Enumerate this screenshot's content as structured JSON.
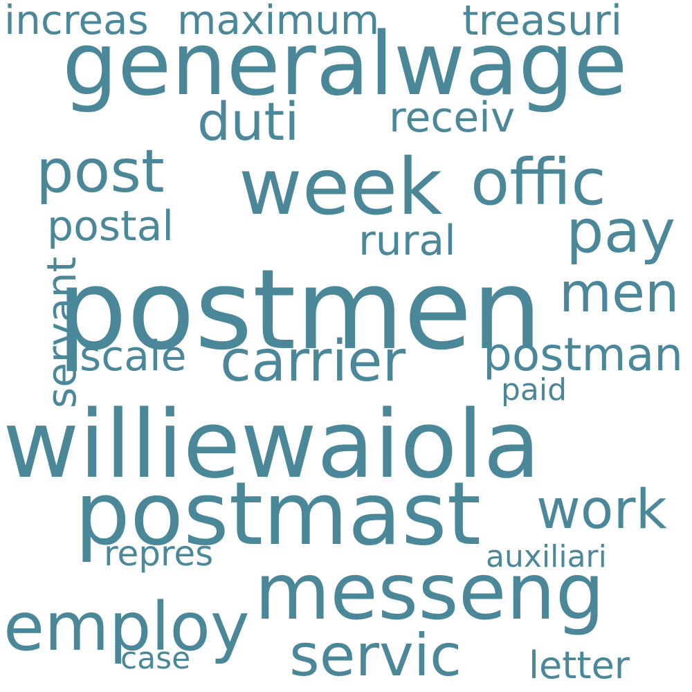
{
  "color": "#4a8799",
  "words": [
    {
      "id": "postmen",
      "text": "postmen"
    },
    {
      "id": "williewaiola",
      "text": "williewaiola"
    },
    {
      "id": "generalwage",
      "text": "generalwage"
    },
    {
      "id": "postmast",
      "text": "postmast"
    },
    {
      "id": "messeng",
      "text": "messeng"
    },
    {
      "id": "week",
      "text": "week"
    },
    {
      "id": "offic",
      "text": "offic"
    },
    {
      "id": "employ",
      "text": "employ"
    },
    {
      "id": "servic",
      "text": "servic"
    },
    {
      "id": "carrier",
      "text": "carrier"
    },
    {
      "id": "post",
      "text": "post"
    },
    {
      "id": "pay",
      "text": "pay"
    },
    {
      "id": "men",
      "text": "men"
    },
    {
      "id": "work",
      "text": "work"
    },
    {
      "id": "duti",
      "text": "duti"
    },
    {
      "id": "postman",
      "text": "postman"
    },
    {
      "id": "treasuri",
      "text": "treasuri"
    },
    {
      "id": "increas",
      "text": "increas"
    },
    {
      "id": "maximum",
      "text": "maximum"
    },
    {
      "id": "receiv",
      "text": "receiv"
    },
    {
      "id": "postal",
      "text": "postal"
    },
    {
      "id": "rural",
      "text": "rural"
    },
    {
      "id": "scale",
      "text": "scale"
    },
    {
      "id": "servant",
      "text": "servant"
    },
    {
      "id": "repres",
      "text": "repres"
    },
    {
      "id": "auxiliari",
      "text": "auxiliari"
    },
    {
      "id": "letter",
      "text": "letter"
    },
    {
      "id": "case",
      "text": "case"
    },
    {
      "id": "paid",
      "text": "paid"
    }
  ]
}
